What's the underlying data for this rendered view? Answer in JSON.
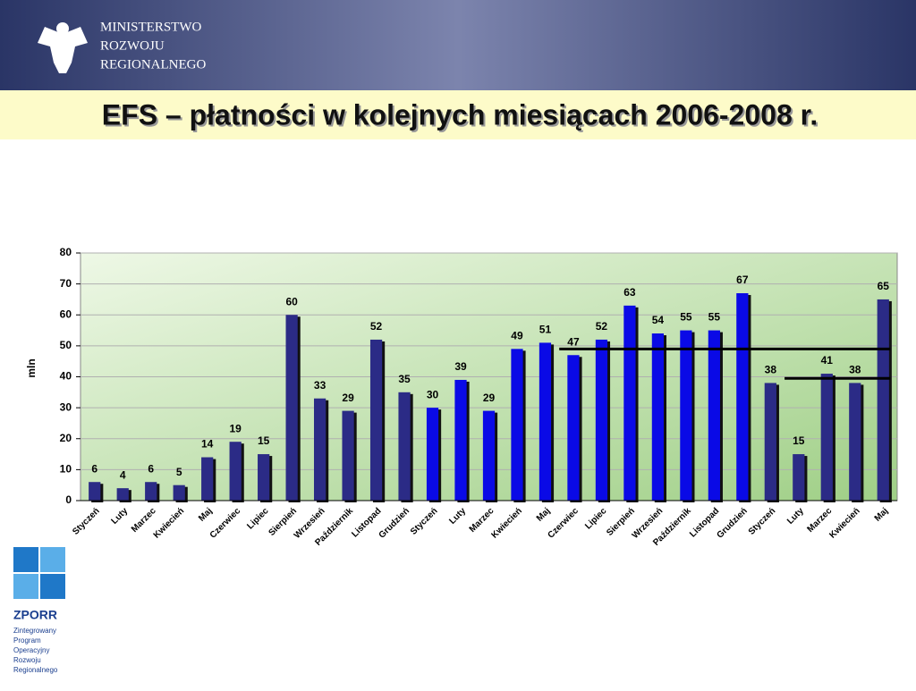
{
  "header": {
    "ministry": [
      "MINISTERSTWO",
      "ROZWOJU",
      "REGIONALNEGO"
    ]
  },
  "slide_title": "EFS – płatności w kolejnych miesiącach 2006-2008 r.",
  "logo": {
    "name": "ZPORR",
    "lines": [
      "Zintegrowany",
      "Program",
      "Operacyjny",
      "Rozwoju",
      "Regionalnego"
    ]
  },
  "chart_data": {
    "type": "bar",
    "ylabel": "mln",
    "categories": [
      "Styczeń",
      "Luty",
      "Marzec",
      "Kwiecień",
      "Maj",
      "Czerwiec",
      "Lipiec",
      "Sierpień",
      "Wrzesień",
      "Październik",
      "Listopad",
      "Grudzień",
      "Styczeń",
      "Luty",
      "Marzec",
      "Kwiecień",
      "Maj",
      "Czerwiec",
      "Lipiec",
      "Sierpień",
      "Wrzesień",
      "Październik",
      "Listopad",
      "Grudzień",
      "Styczeń",
      "Luty",
      "Marzec",
      "Kwiecień",
      "Maj"
    ],
    "values": [
      6,
      4,
      6,
      5,
      14,
      19,
      15,
      60,
      33,
      29,
      52,
      35,
      30,
      39,
      29,
      49,
      51,
      47,
      52,
      63,
      54,
      55,
      55,
      67,
      38,
      15,
      41,
      38,
      65
    ],
    "colors": [
      "#2b2b86",
      "#2b2b86",
      "#2b2b86",
      "#2b2b86",
      "#2b2b86",
      "#2b2b86",
      "#2b2b86",
      "#2b2b86",
      "#2b2b86",
      "#2b2b86",
      "#2b2b86",
      "#2b2b86",
      "#0a0ae6",
      "#0a0ae6",
      "#0a0ae6",
      "#0a0ae6",
      "#0a0ae6",
      "#0a0ae6",
      "#0a0ae6",
      "#0a0ae6",
      "#0a0ae6",
      "#0a0ae6",
      "#0a0ae6",
      "#0a0ae6",
      "#2b2b86",
      "#2b2b86",
      "#2b2b86",
      "#2b2b86",
      "#2b2b86"
    ],
    "reference_lines": [
      {
        "value": 49,
        "start": 17,
        "end": 28
      },
      {
        "value": 39.5,
        "start": 25,
        "end": 28
      }
    ],
    "ylim": [
      0,
      80
    ],
    "yticks": [
      0,
      10,
      20,
      30,
      40,
      50,
      60,
      70,
      80
    ],
    "grid": true
  }
}
